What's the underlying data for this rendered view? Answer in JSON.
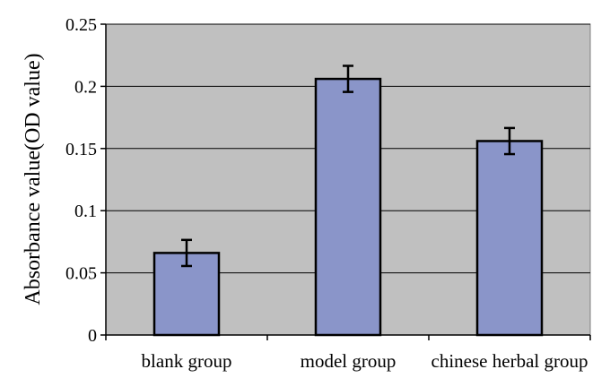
{
  "chart_data": {
    "type": "bar",
    "categories": [
      "blank group",
      "model group",
      "chinese herbal group"
    ],
    "values": [
      0.066,
      0.206,
      0.156
    ],
    "errors": [
      0.0105,
      0.0105,
      0.0105
    ],
    "xlabel": "",
    "ylabel": "Absorbance value(OD value)",
    "ylim": [
      0,
      0.25
    ],
    "yticks": [
      0,
      0.05,
      0.1,
      0.15,
      0.2,
      0.25
    ],
    "ytick_labels": [
      "0",
      "0.05",
      "0.1",
      "0.15",
      "0.2",
      "0.25"
    ],
    "grid": true,
    "legend": "none",
    "colors": {
      "plot_background": "#c0c0c0",
      "bar_fill": "#8a95c9",
      "bar_edge": "#000000",
      "gridline": "#000000"
    }
  }
}
